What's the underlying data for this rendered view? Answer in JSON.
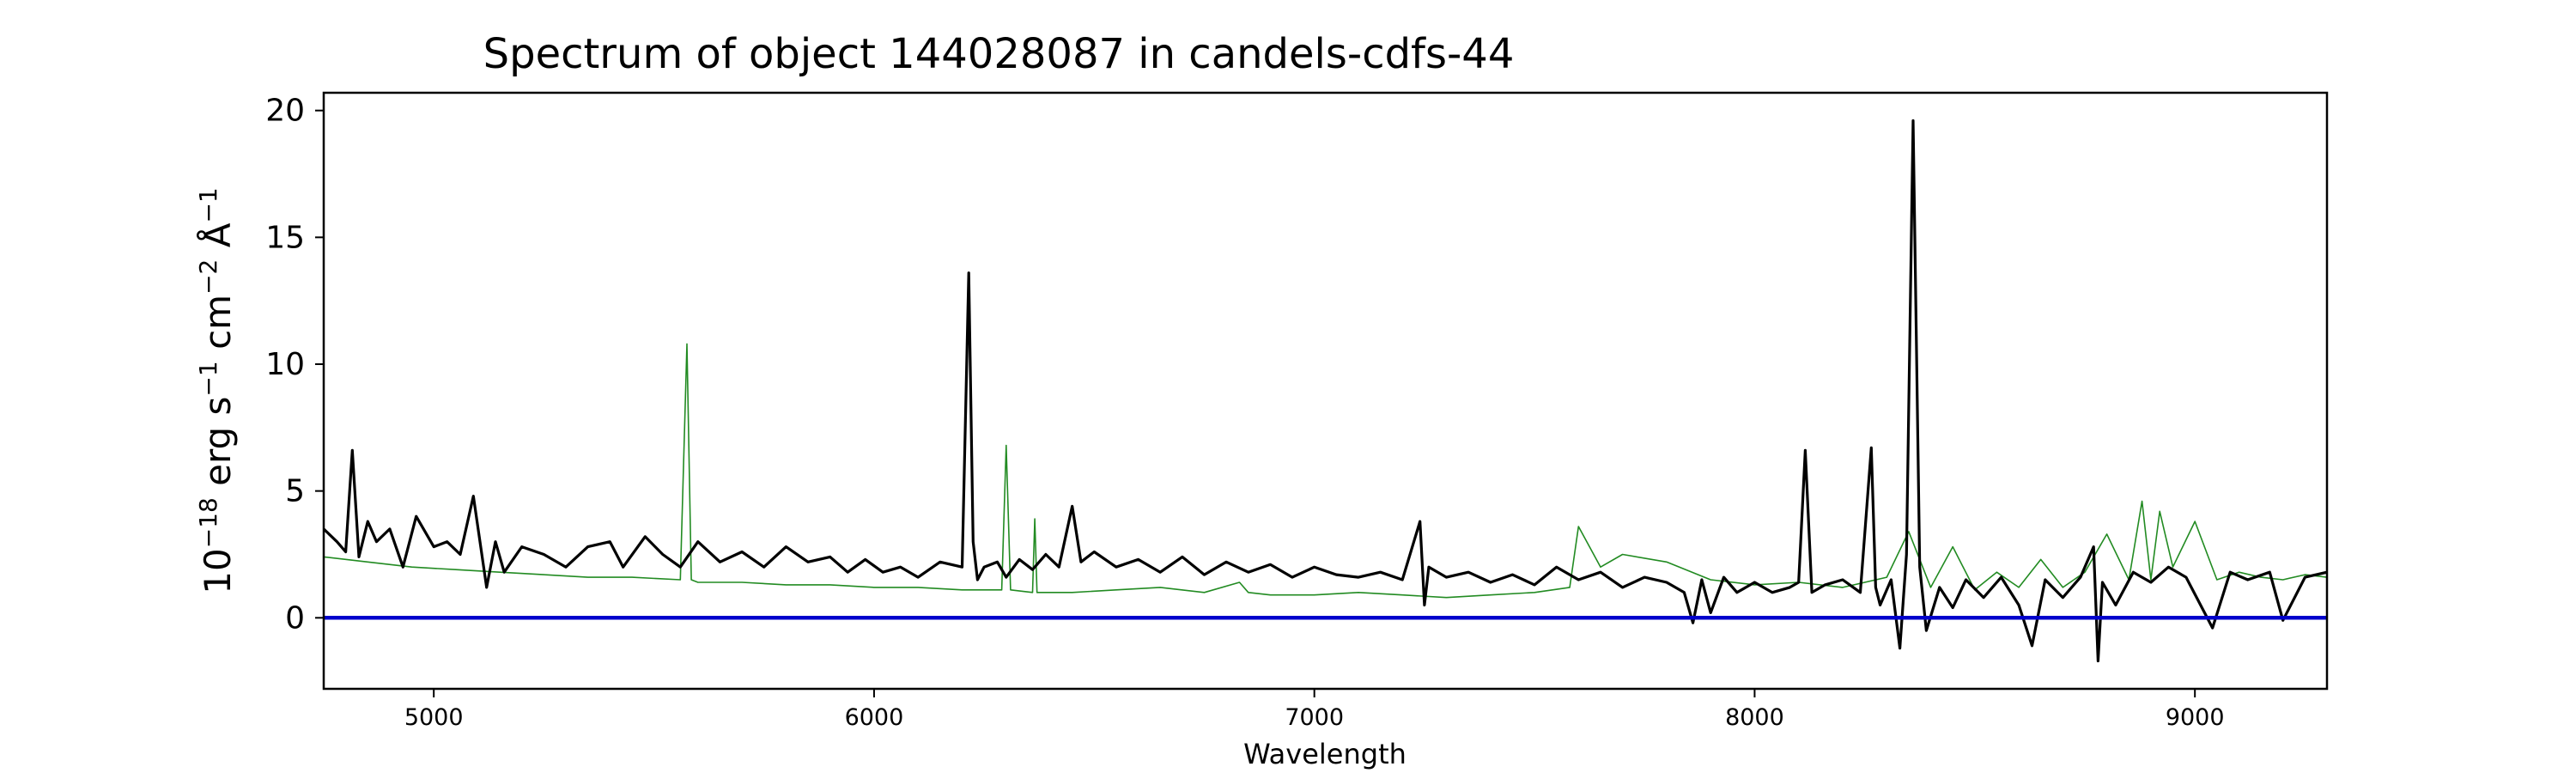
{
  "chart_data": {
    "type": "line",
    "title": "Spectrum of object 144028087 in candels-cdfs-44",
    "xlabel": "Wavelength",
    "ylabel": "10^-18 erg s^-1 cm^-2 Å^-1",
    "ylabel_parts": [
      "10",
      "−18",
      " erg s",
      "−1",
      " cm",
      "−2",
      " Å",
      "−1"
    ],
    "xlim": [
      4750,
      9300
    ],
    "ylim": [
      -2.8,
      20.7
    ],
    "xticks": [
      5000,
      6000,
      7000,
      8000,
      9000
    ],
    "yticks": [
      0,
      5,
      10,
      15,
      20
    ],
    "grid": false,
    "colors": {
      "flux": "#000000",
      "model": "#228b22",
      "zero": "#0000cc"
    },
    "series": [
      {
        "role": "flux",
        "x": [
          4750,
          4780,
          4800,
          4815,
          4830,
          4850,
          4870,
          4900,
          4930,
          4960,
          5000,
          5030,
          5060,
          5090,
          5120,
          5140,
          5160,
          5200,
          5250,
          5300,
          5350,
          5400,
          5430,
          5480,
          5520,
          5560,
          5600,
          5650,
          5700,
          5750,
          5800,
          5850,
          5900,
          5940,
          5980,
          6020,
          6060,
          6100,
          6150,
          6200,
          6215,
          6225,
          6235,
          6250,
          6280,
          6300,
          6330,
          6360,
          6390,
          6420,
          6450,
          6470,
          6500,
          6550,
          6600,
          6650,
          6700,
          6750,
          6800,
          6850,
          6900,
          6950,
          7000,
          7050,
          7100,
          7150,
          7200,
          7240,
          7250,
          7260,
          7300,
          7350,
          7400,
          7450,
          7500,
          7550,
          7600,
          7650,
          7700,
          7750,
          7800,
          7840,
          7860,
          7880,
          7900,
          7930,
          7960,
          8000,
          8040,
          8080,
          8100,
          8115,
          8130,
          8160,
          8200,
          8240,
          8265,
          8275,
          8285,
          8310,
          8330,
          8345,
          8360,
          8375,
          8390,
          8420,
          8450,
          8480,
          8520,
          8560,
          8600,
          8630,
          8660,
          8700,
          8740,
          8770,
          8780,
          8790,
          8820,
          8860,
          8900,
          8940,
          8980,
          9040,
          9080,
          9120,
          9170,
          9200,
          9250,
          9300
        ],
        "y": [
          3.5,
          3.0,
          2.6,
          6.6,
          2.4,
          3.8,
          3.0,
          3.5,
          2.0,
          4.0,
          2.8,
          3.0,
          2.5,
          4.8,
          1.2,
          3.0,
          1.8,
          2.8,
          2.5,
          2.0,
          2.8,
          3.0,
          2.0,
          3.2,
          2.5,
          2.0,
          3.0,
          2.2,
          2.6,
          2.0,
          2.8,
          2.2,
          2.4,
          1.8,
          2.3,
          1.8,
          2.0,
          1.6,
          2.2,
          2.0,
          13.6,
          3.0,
          1.5,
          2.0,
          2.2,
          1.6,
          2.3,
          1.9,
          2.5,
          2.0,
          4.4,
          2.2,
          2.6,
          2.0,
          2.3,
          1.8,
          2.4,
          1.7,
          2.2,
          1.8,
          2.1,
          1.6,
          2.0,
          1.7,
          1.6,
          1.8,
          1.5,
          3.8,
          0.5,
          2.0,
          1.6,
          1.8,
          1.4,
          1.7,
          1.3,
          2.0,
          1.5,
          1.8,
          1.2,
          1.6,
          1.4,
          1.0,
          -0.2,
          1.5,
          0.2,
          1.6,
          1.0,
          1.4,
          1.0,
          1.2,
          1.4,
          6.6,
          1.0,
          1.3,
          1.5,
          1.0,
          6.7,
          1.2,
          0.5,
          1.5,
          -1.2,
          2.5,
          19.6,
          2.0,
          -0.5,
          1.2,
          0.4,
          1.5,
          0.8,
          1.6,
          0.5,
          -1.1,
          1.5,
          0.8,
          1.6,
          2.8,
          -1.7,
          1.4,
          0.5,
          1.8,
          1.4,
          2.0,
          1.6,
          -0.4,
          1.8,
          1.5,
          1.8,
          -0.1,
          1.6,
          1.8
        ]
      },
      {
        "role": "model",
        "x": [
          4750,
          4850,
          4950,
          5050,
          5150,
          5250,
          5350,
          5450,
          5560,
          5575,
          5585,
          5600,
          5700,
          5800,
          5900,
          6000,
          6100,
          6200,
          6290,
          6300,
          6310,
          6360,
          6365,
          6370,
          6450,
          6550,
          6650,
          6750,
          6830,
          6850,
          6900,
          7000,
          7100,
          7200,
          7300,
          7400,
          7500,
          7580,
          7600,
          7650,
          7700,
          7800,
          7900,
          8000,
          8100,
          8200,
          8300,
          8350,
          8400,
          8450,
          8500,
          8550,
          8600,
          8650,
          8700,
          8750,
          8800,
          8850,
          8880,
          8900,
          8920,
          8950,
          9000,
          9050,
          9100,
          9150,
          9200,
          9250,
          9300
        ],
        "y": [
          2.4,
          2.2,
          2.0,
          1.9,
          1.8,
          1.7,
          1.6,
          1.6,
          1.5,
          10.8,
          1.5,
          1.4,
          1.4,
          1.3,
          1.3,
          1.2,
          1.2,
          1.1,
          1.1,
          6.8,
          1.1,
          1.0,
          3.9,
          1.0,
          1.0,
          1.1,
          1.2,
          1.0,
          1.4,
          1.0,
          0.9,
          0.9,
          1.0,
          0.9,
          0.8,
          0.9,
          1.0,
          1.2,
          3.6,
          2.0,
          2.5,
          2.2,
          1.5,
          1.3,
          1.4,
          1.2,
          1.6,
          3.4,
          1.2,
          2.8,
          1.1,
          1.8,
          1.2,
          2.3,
          1.2,
          1.8,
          3.3,
          1.5,
          4.6,
          1.5,
          4.2,
          2.0,
          3.8,
          1.5,
          1.8,
          1.6,
          1.5,
          1.7,
          1.6
        ]
      },
      {
        "role": "zero",
        "x": [
          4750,
          9300
        ],
        "y": [
          0,
          0
        ]
      }
    ]
  }
}
